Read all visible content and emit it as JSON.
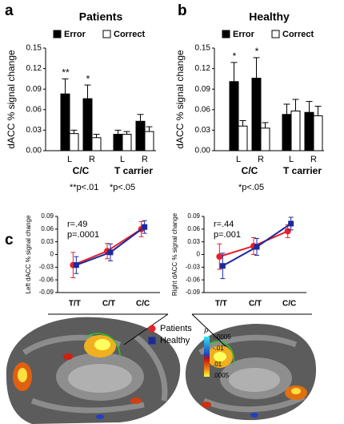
{
  "panel_letters": [
    "a",
    "b",
    "c"
  ],
  "chart_data": [
    {
      "type": "bar",
      "title": "Patients",
      "ylabel": "dACC % signal change",
      "categories": [
        "L",
        "R",
        "L",
        "R"
      ],
      "group_labels": [
        "C/C",
        "T carrier"
      ],
      "series": [
        {
          "name": "Error",
          "color": "#000000",
          "values": [
            0.083,
            0.076,
            0.024,
            0.043
          ],
          "errors": [
            0.022,
            0.02,
            0.006,
            0.01
          ]
        },
        {
          "name": "Correct",
          "color": "#ffffff",
          "values": [
            0.025,
            0.019,
            0.024,
            0.028
          ],
          "errors": [
            0.005,
            0.005,
            0.004,
            0.007
          ]
        }
      ],
      "annotations": [
        "**",
        "*"
      ],
      "notes": [
        "**p<.01",
        "*p<.05"
      ],
      "ylim": [
        0,
        0.15
      ],
      "yticks": [
        {
          "value": 0,
          "label": "0.00"
        },
        0.03,
        0.06,
        0.09,
        0.12,
        0.15
      ]
    },
    {
      "type": "bar",
      "title": "Healthy",
      "ylabel": "dACC % signal change",
      "categories": [
        "L",
        "R",
        "L",
        "R"
      ],
      "group_labels": [
        "C/C",
        "T carrier"
      ],
      "series": [
        {
          "name": "Error",
          "color": "#000000",
          "values": [
            0.101,
            0.106,
            0.053,
            0.056
          ],
          "errors": [
            0.028,
            0.03,
            0.015,
            0.016
          ]
        },
        {
          "name": "Correct",
          "color": "#ffffff",
          "values": [
            0.036,
            0.033,
            0.058,
            0.051
          ],
          "errors": [
            0.008,
            0.008,
            0.017,
            0.014
          ]
        }
      ],
      "annotations": [
        "*",
        "*"
      ],
      "notes": [
        "*p<.05"
      ],
      "ylim": [
        0,
        0.15
      ],
      "yticks": [
        {
          "value": 0,
          "label": "0.00"
        },
        0.03,
        0.06,
        0.09,
        0.12,
        0.15
      ]
    },
    {
      "type": "line",
      "categories": [
        "T/T",
        "C/T",
        "C/C"
      ],
      "series": [
        {
          "name": "Patients",
          "color": "#e8202a"
        },
        {
          "name": "Healthy",
          "color": "#1a2a9c"
        }
      ],
      "ylim": [
        -0.09,
        0.09
      ],
      "yticks": [
        -0.09,
        -0.06,
        -0.03,
        0,
        0.03,
        0.06,
        0.09
      ],
      "panels": [
        {
          "ylabel": "Left dACC % signal change",
          "annotations": [
            "r=.49",
            "p=.0001"
          ],
          "values": [
            [
              -0.025,
              0.008,
              0.06
            ],
            [
              -0.025,
              0.005,
              0.065
            ]
          ],
          "errors": [
            [
              0.03,
              0.018,
              0.018
            ],
            [
              0.02,
              0.02,
              0.015
            ]
          ]
        },
        {
          "ylabel": "Right dACC % signal change",
          "annotations": [
            "r=.44",
            "p=.001"
          ],
          "values": [
            [
              -0.005,
              0.02,
              0.055
            ],
            [
              -0.027,
              0.018,
              0.073
            ]
          ],
          "errors": [
            [
              0.03,
              0.02,
              0.015
            ],
            [
              0.03,
              0.02,
              0.015
            ]
          ]
        }
      ]
    }
  ],
  "colorbar": {
    "title": "p",
    "labels": [
      "-.0005",
      "-.01",
      ".01",
      ".0005"
    ]
  }
}
